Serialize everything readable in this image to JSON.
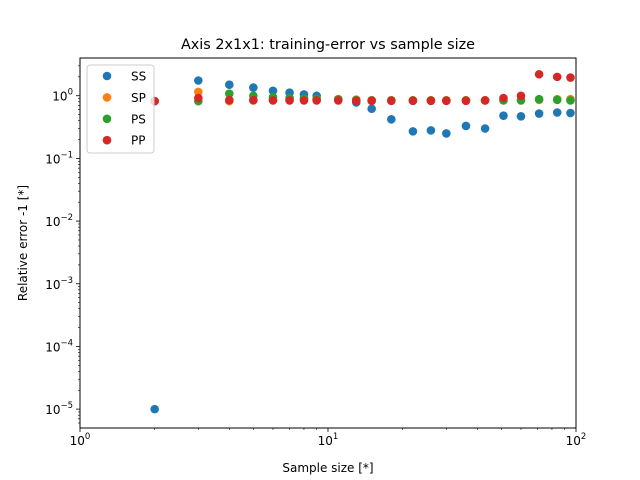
{
  "chart_data": {
    "type": "scatter",
    "title": "Axis 2x1x1: training-error vs sample size",
    "xlabel": "Sample size [*]",
    "ylabel": "Relative error -1 [*]",
    "xscale": "log",
    "yscale": "log",
    "xlim": [
      1,
      100
    ],
    "ylim": [
      5e-06,
      4
    ],
    "grid": false,
    "legend_position": "upper-left",
    "x_ticks": [
      {
        "value": 1,
        "base": "10",
        "exp": "0"
      },
      {
        "value": 10,
        "base": "10",
        "exp": "1"
      },
      {
        "value": 100,
        "base": "10",
        "exp": "2"
      }
    ],
    "y_ticks": [
      {
        "value": 1e-05,
        "base": "10",
        "exp": "−5"
      },
      {
        "value": 0.0001,
        "base": "10",
        "exp": "−4"
      },
      {
        "value": 0.001,
        "base": "10",
        "exp": "−3"
      },
      {
        "value": 0.01,
        "base": "10",
        "exp": "−2"
      },
      {
        "value": 0.1,
        "base": "10",
        "exp": "−1"
      },
      {
        "value": 1,
        "base": "10",
        "exp": "0"
      }
    ],
    "x": [
      2,
      3,
      4,
      5,
      6,
      7,
      8,
      9,
      11,
      13,
      15,
      18,
      22,
      26,
      30,
      36,
      43,
      51,
      60,
      71,
      84,
      95
    ],
    "series": [
      {
        "name": "SS",
        "color": "#1f77b4",
        "values": [
          1e-05,
          1.75,
          1.5,
          1.35,
          1.2,
          1.12,
          1.05,
          1.0,
          0.88,
          0.78,
          0.62,
          0.42,
          0.27,
          0.28,
          0.25,
          0.33,
          0.3,
          0.48,
          0.47,
          0.52,
          0.54,
          0.53
        ]
      },
      {
        "name": "SP",
        "color": "#ff7f0e",
        "values": [
          0.82,
          1.15,
          0.82,
          0.84,
          0.86,
          0.87,
          0.88,
          0.88,
          0.88,
          0.87,
          0.85,
          0.85,
          0.85,
          0.85,
          0.85,
          0.85,
          0.85,
          0.86,
          0.86,
          0.86,
          0.88,
          0.88
        ]
      },
      {
        "name": "PS",
        "color": "#2ca02c",
        "values": [
          0.82,
          0.82,
          1.08,
          1.0,
          0.95,
          0.92,
          0.9,
          0.88,
          0.87,
          0.85,
          0.84,
          0.84,
          0.84,
          0.84,
          0.84,
          0.84,
          0.84,
          0.84,
          0.84,
          0.88,
          0.86,
          0.84
        ]
      },
      {
        "name": "PP",
        "color": "#d62728",
        "values": [
          0.82,
          0.92,
          0.85,
          0.85,
          0.84,
          0.84,
          0.84,
          0.84,
          0.84,
          0.83,
          0.83,
          0.83,
          0.83,
          0.83,
          0.83,
          0.83,
          0.84,
          0.92,
          1.0,
          2.2,
          2.0,
          1.95
        ]
      }
    ]
  }
}
